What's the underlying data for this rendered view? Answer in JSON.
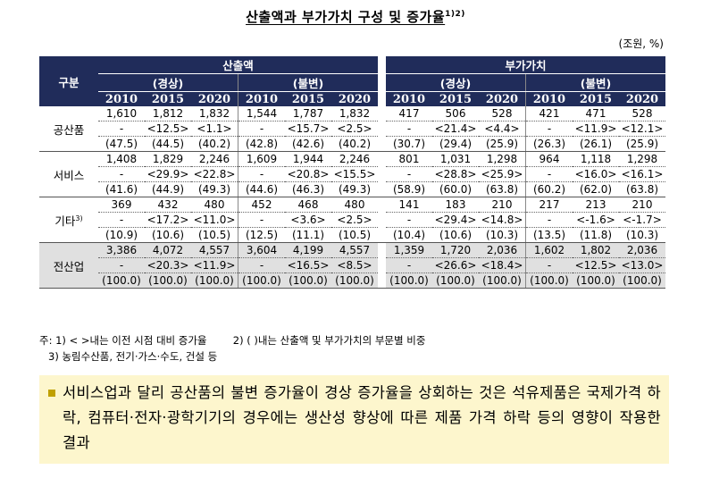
{
  "title": "산출액과 부가가치 구성 및 증가율",
  "title_sup": "1)2)",
  "unit": "(조원, %)",
  "header": {
    "corner": "구분",
    "group1": "산출액",
    "group2": "부가가치",
    "sub_nominal": "(경상)",
    "sub_real": "(불변)",
    "years": [
      "2010",
      "2015",
      "2020",
      "2010",
      "2015",
      "2020"
    ]
  },
  "rows": [
    {
      "category": "공산품",
      "sup": "",
      "lines": [
        [
          "1,610",
          "1,812",
          "1,832",
          "1,544",
          "1,787",
          "1,832",
          "417",
          "506",
          "528",
          "421",
          "471",
          "528"
        ],
        [
          "-",
          "<12.5>",
          "<1.1>",
          "-",
          "<15.7>",
          "<2.5>",
          "-",
          "<21.4>",
          "<4.4>",
          "-",
          "<11.9>",
          "<12.1>"
        ],
        [
          "(47.5)",
          "(44.5)",
          "(40.2)",
          "(42.8)",
          "(42.6)",
          "(40.2)",
          "(30.7)",
          "(29.4)",
          "(25.9)",
          "(26.3)",
          "(26.1)",
          "(25.9)"
        ]
      ]
    },
    {
      "category": "서비스",
      "sup": "",
      "lines": [
        [
          "1,408",
          "1,829",
          "2,246",
          "1,609",
          "1,944",
          "2,246",
          "801",
          "1,031",
          "1,298",
          "964",
          "1,118",
          "1,298"
        ],
        [
          "-",
          "<29.9>",
          "<22.8>",
          "-",
          "<20.8>",
          "<15.5>",
          "-",
          "<28.8>",
          "<25.9>",
          "-",
          "<16.0>",
          "<16.1>"
        ],
        [
          "(41.6)",
          "(44.9)",
          "(49.3)",
          "(44.6)",
          "(46.3)",
          "(49.3)",
          "(58.9)",
          "(60.0)",
          "(63.8)",
          "(60.2)",
          "(62.0)",
          "(63.8)"
        ]
      ]
    },
    {
      "category": "기타",
      "sup": "3)",
      "lines": [
        [
          "369",
          "432",
          "480",
          "452",
          "468",
          "480",
          "141",
          "183",
          "210",
          "217",
          "213",
          "210"
        ],
        [
          "-",
          "<17.2>",
          "<11.0>",
          "-",
          "<3.6>",
          "<2.5>",
          "-",
          "<29.4>",
          "<14.8>",
          "-",
          "<-1.6>",
          "<-1.7>"
        ],
        [
          "(10.9)",
          "(10.6)",
          "(10.5)",
          "(12.5)",
          "(11.1)",
          "(10.5)",
          "(10.4)",
          "(10.6)",
          "(10.3)",
          "(13.5)",
          "(11.8)",
          "(10.3)"
        ]
      ]
    },
    {
      "category": "전산업",
      "sup": "",
      "lines": [
        [
          "3,386",
          "4,072",
          "4,557",
          "3,604",
          "4,199",
          "4,557",
          "1,359",
          "1,720",
          "2,036",
          "1,602",
          "1,802",
          "2,036"
        ],
        [
          "-",
          "<20.3>",
          "<11.9>",
          "-",
          "<16.5>",
          "<8.5>",
          "-",
          "<26.6>",
          "<18.4>",
          "-",
          "<12.5>",
          "<13.0>"
        ],
        [
          "(100.0)",
          "(100.0)",
          "(100.0)",
          "(100.0)",
          "(100.0)",
          "(100.0)",
          "(100.0)",
          "(100.0)",
          "(100.0)",
          "(100.0)",
          "(100.0)",
          "(100.0)"
        ]
      ]
    }
  ],
  "notes": {
    "line1a": "주: 1) < >내는 이전 시점 대비 증가율",
    "line1b": "2) ( )내는 산출액 및 부가가치의 부문별 비중",
    "line2": "3) 농림수산품, 전기·가스·수도, 건설 등"
  },
  "box_text": "서비스업과 달리 공산품의 불변 증가율이 경상 증가율을 상회하는 것은 석유제품은 국제가격 하락, 컴퓨터·전자·광학기기의 경우에는 생산성 향상에 따른 제품 가격 하락 등의 영향이 작용한 결과"
}
